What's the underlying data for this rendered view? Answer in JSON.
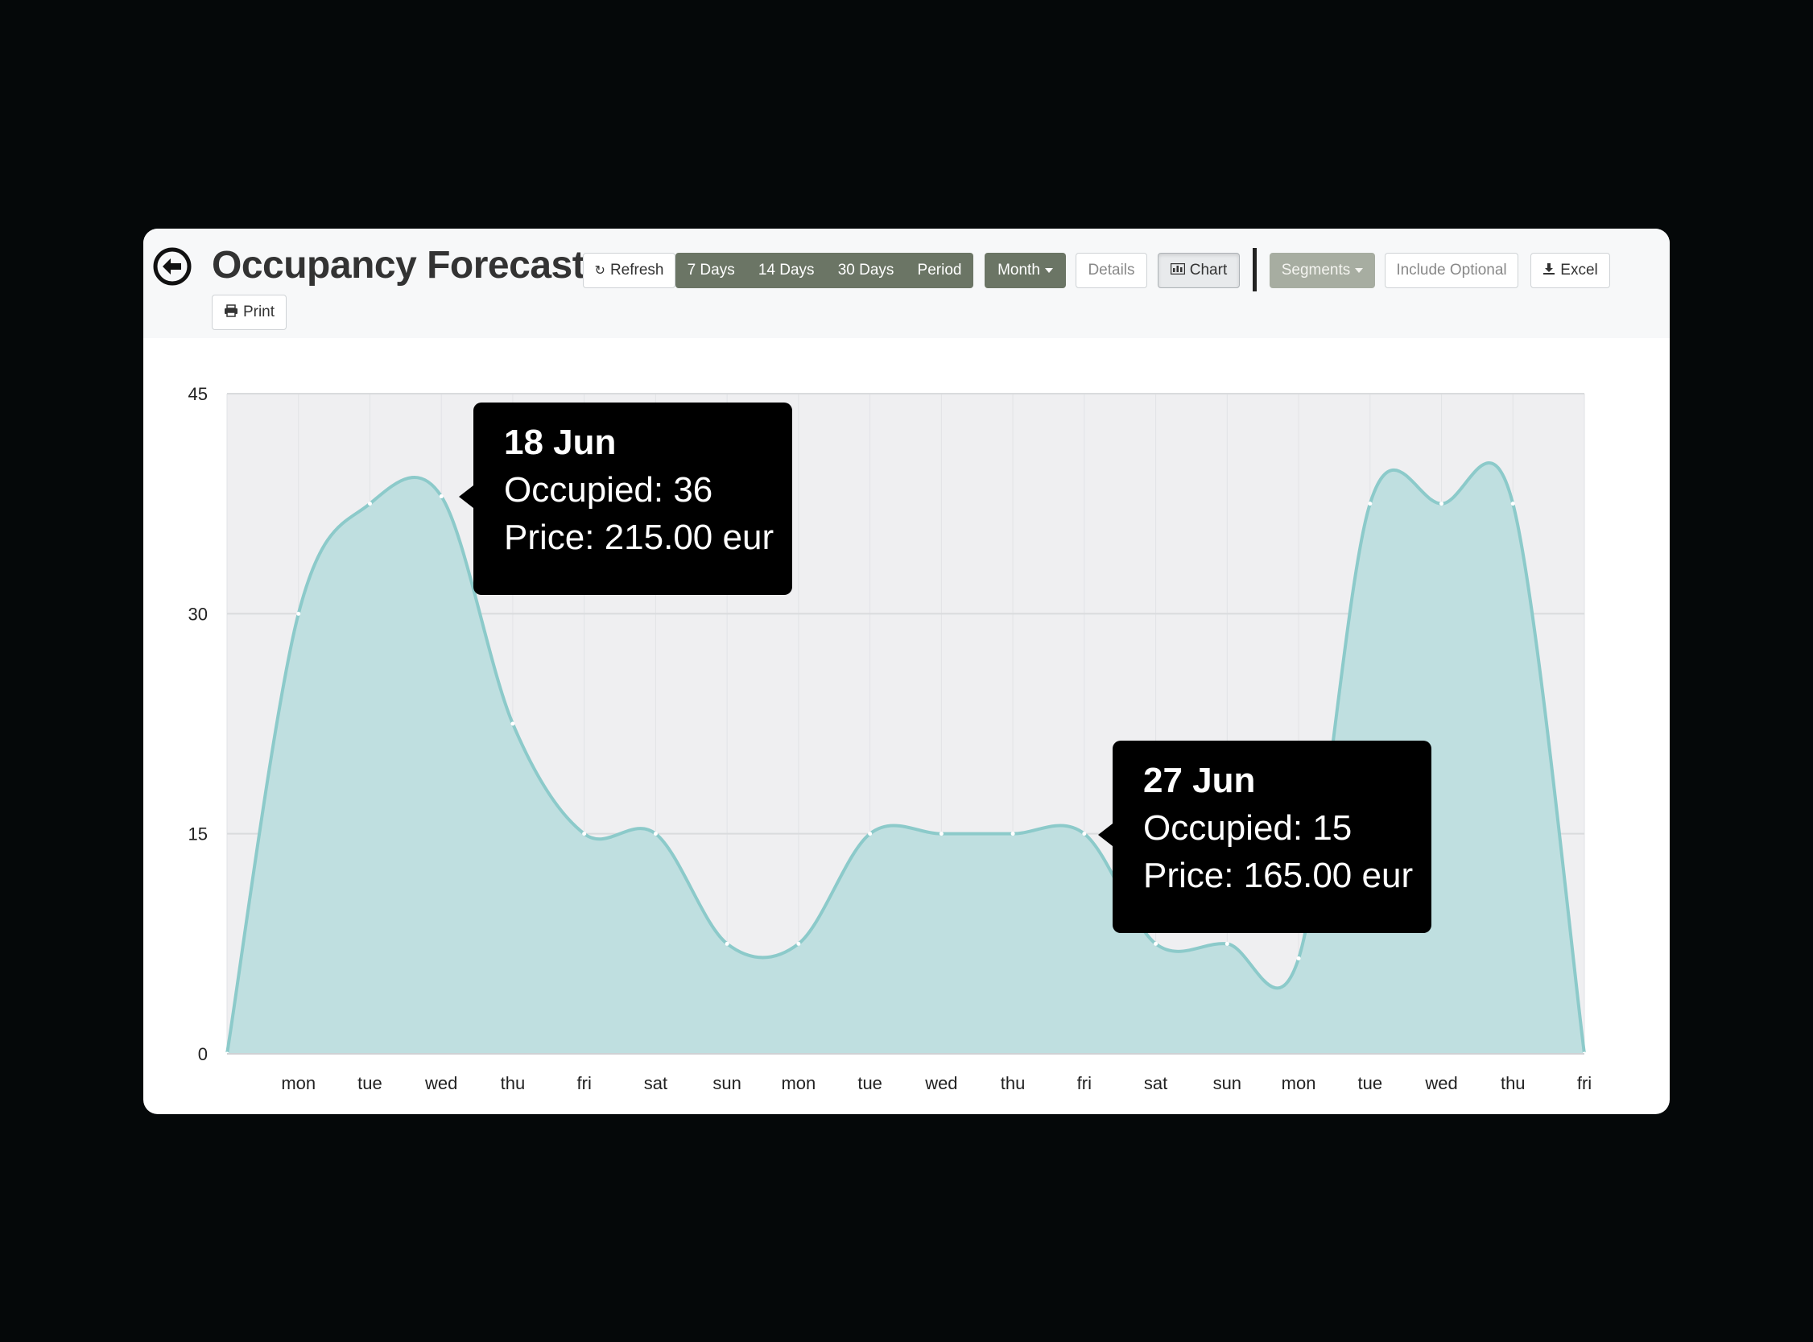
{
  "header": {
    "title": "Occupancy Forecast",
    "buttons": {
      "refresh": "Refresh",
      "days7": "7 Days",
      "days14": "14 Days",
      "days30": "30 Days",
      "period": "Period",
      "month": "Month",
      "details": "Details",
      "chart": "Chart",
      "segments": "Segments",
      "include_optional": "Include Optional",
      "excel": "Excel",
      "print": "Print"
    }
  },
  "colors": {
    "button_group": "#6b7565",
    "area_fill": "#bfdfe0",
    "area_line": "#8ccaca",
    "plot_bg": "#efeff1"
  },
  "icons": {
    "back": "back-arrow-circle-icon",
    "refresh": "refresh-icon",
    "chart": "bar-chart-icon",
    "excel": "download-icon",
    "print": "printer-icon"
  },
  "chart_data": {
    "type": "area",
    "title": "",
    "xlabel": "",
    "ylabel": "",
    "ylim": [
      0,
      45
    ],
    "yticks": [
      "0",
      "15",
      "30",
      "45"
    ],
    "x": [
      "",
      "mon",
      "tue",
      "wed",
      "thu",
      "fri",
      "sat",
      "sun",
      "mon",
      "tue",
      "wed",
      "thu",
      "fri",
      "sat",
      "sun",
      "mon",
      "tue",
      "wed",
      "thu",
      "fri"
    ],
    "values": [
      0,
      30,
      37.5,
      38,
      22.5,
      15,
      15,
      7.5,
      7.5,
      15,
      15,
      15,
      15,
      7.5,
      7.5,
      6.5,
      37.5,
      37.5,
      37.5,
      0
    ],
    "grid": true,
    "legend": "none",
    "tooltips": [
      {
        "date": "18 Jun",
        "occupied": "Occupied: 36",
        "price": "Price: 215.00 eur"
      },
      {
        "date": "27 Jun",
        "occupied": "Occupied: 15",
        "price": "Price: 165.00 eur"
      }
    ]
  }
}
